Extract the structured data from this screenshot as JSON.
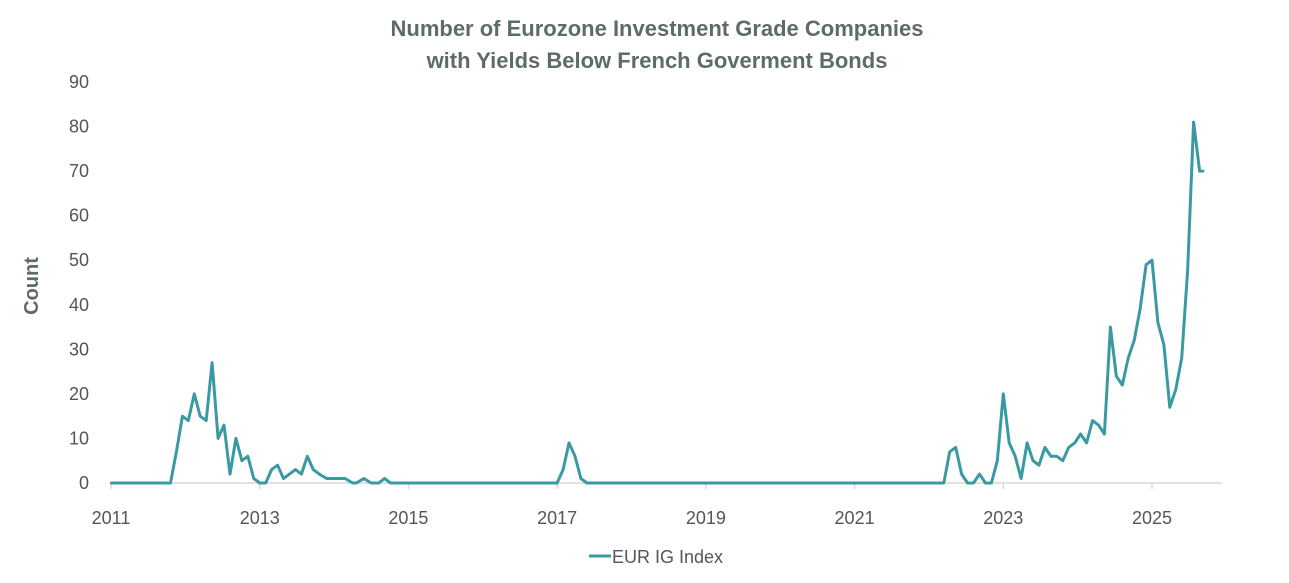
{
  "colors": {
    "series": "#3a9aa3",
    "axis": "#d9d9d9",
    "text": "#555555",
    "title": "#5f6b6b"
  },
  "chart_data": {
    "type": "line",
    "title_line1": "Number of Eurozone Investment Grade Companies",
    "title_line2": "with Yields Below French Goverment Bonds",
    "xlabel": "",
    "ylabel": "Count",
    "xlim": [
      2011,
      2025.9
    ],
    "ylim": [
      0,
      90
    ],
    "y_ticks": [
      "0",
      "10",
      "20",
      "30",
      "40",
      "50",
      "60",
      "70",
      "80",
      "90"
    ],
    "x_ticks": [
      "2011",
      "2013",
      "2015",
      "2017",
      "2019",
      "2021",
      "2023",
      "2025"
    ],
    "grid": false,
    "legend_position": "bottom",
    "series": [
      {
        "name": "EUR IG Index",
        "x": [
          2011.0,
          2011.8,
          2011.88,
          2011.96,
          2012.04,
          2012.12,
          2012.2,
          2012.28,
          2012.36,
          2012.44,
          2012.52,
          2012.6,
          2012.68,
          2012.76,
          2012.84,
          2012.92,
          2013.0,
          2013.08,
          2013.16,
          2013.24,
          2013.32,
          2013.4,
          2013.48,
          2013.56,
          2013.64,
          2013.72,
          2013.8,
          2013.9,
          2014.0,
          2014.15,
          2014.25,
          2014.3,
          2014.4,
          2014.5,
          2014.6,
          2014.68,
          2014.76,
          2016.0,
          2017.0,
          2017.08,
          2017.16,
          2017.24,
          2017.32,
          2017.4,
          2018.0,
          2022.2,
          2022.28,
          2022.36,
          2022.44,
          2022.52,
          2022.6,
          2022.68,
          2022.76,
          2022.84,
          2022.92,
          2023.0,
          2023.08,
          2023.16,
          2023.24,
          2023.32,
          2023.4,
          2023.48,
          2023.56,
          2023.64,
          2023.72,
          2023.8,
          2023.88,
          2023.96,
          2024.04,
          2024.12,
          2024.2,
          2024.28,
          2024.36,
          2024.44,
          2024.52,
          2024.6,
          2024.68,
          2024.76,
          2024.84,
          2024.92,
          2025.0,
          2025.08,
          2025.16,
          2025.24,
          2025.32,
          2025.4,
          2025.48,
          2025.56,
          2025.64,
          2025.67,
          2025.69
        ],
        "values": [
          0,
          0,
          7,
          15,
          14,
          20,
          15,
          14,
          27,
          10,
          13,
          2,
          10,
          5,
          6,
          1,
          0,
          0,
          3,
          4,
          1,
          2,
          3,
          2,
          6,
          3,
          2,
          1,
          1,
          1,
          0,
          0,
          1,
          0,
          0,
          1,
          0,
          0,
          0,
          3,
          9,
          6,
          1,
          0,
          0,
          0,
          7,
          8,
          2,
          0,
          0,
          2,
          0,
          0,
          5,
          20,
          9,
          6,
          1,
          9,
          5,
          4,
          8,
          6,
          6,
          5,
          8,
          9,
          11,
          9,
          14,
          13,
          11,
          35,
          24,
          22,
          28,
          32,
          39,
          49,
          50,
          36,
          31,
          17,
          21,
          28,
          48,
          81,
          70,
          70,
          70
        ]
      }
    ]
  }
}
